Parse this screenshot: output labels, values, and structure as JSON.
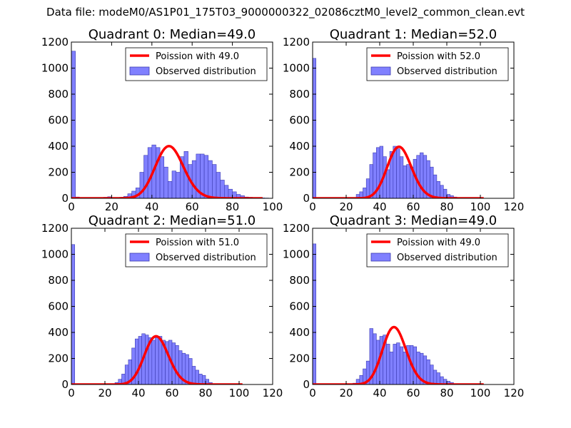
{
  "figure": {
    "suptitle": "Data file: modeM0/AS1P01_175T03_9000000322_02086cztM0_level2_common_clean.evt"
  },
  "colors": {
    "bar_fill": "#8080ff",
    "bar_edge": "#3b3bb0",
    "poisson_line": "#ff0000"
  },
  "chart_data": [
    {
      "type": "bar",
      "title": "Quadrant 0: Median=49.0",
      "xlim": [
        0,
        100
      ],
      "ylim": [
        0,
        1200
      ],
      "xticks": [
        0,
        20,
        40,
        60,
        80,
        100
      ],
      "yticks": [
        0,
        200,
        400,
        600,
        800,
        1000,
        1200
      ],
      "bin_width": 2,
      "legend": {
        "position": "top-right",
        "line_label": "Poission with 49.0",
        "bar_label": "Observed distribution"
      },
      "poisson_mean": 49.0,
      "poisson_peak": 400,
      "poisson_x_range": [
        0,
        95
      ],
      "bins": [
        [
          0,
          1130
        ],
        [
          2,
          10
        ],
        [
          4,
          5
        ],
        [
          6,
          5
        ],
        [
          8,
          5
        ],
        [
          10,
          5
        ],
        [
          12,
          5
        ],
        [
          14,
          5
        ],
        [
          16,
          8
        ],
        [
          18,
          12
        ],
        [
          20,
          5
        ],
        [
          22,
          5
        ],
        [
          24,
          8
        ],
        [
          26,
          15
        ],
        [
          28,
          35
        ],
        [
          30,
          55
        ],
        [
          32,
          80
        ],
        [
          34,
          200
        ],
        [
          36,
          330
        ],
        [
          38,
          390
        ],
        [
          40,
          410
        ],
        [
          42,
          390
        ],
        [
          44,
          320
        ],
        [
          46,
          240
        ],
        [
          48,
          130
        ],
        [
          50,
          210
        ],
        [
          52,
          200
        ],
        [
          54,
          320
        ],
        [
          56,
          360
        ],
        [
          58,
          260
        ],
        [
          60,
          290
        ],
        [
          62,
          340
        ],
        [
          64,
          340
        ],
        [
          66,
          330
        ],
        [
          68,
          290
        ],
        [
          70,
          260
        ],
        [
          72,
          200
        ],
        [
          74,
          140
        ],
        [
          76,
          100
        ],
        [
          78,
          70
        ],
        [
          80,
          50
        ],
        [
          82,
          30
        ],
        [
          84,
          20
        ],
        [
          86,
          10
        ],
        [
          88,
          8
        ],
        [
          90,
          5
        ],
        [
          92,
          4
        ],
        [
          94,
          3
        ],
        [
          96,
          2
        ],
        [
          98,
          1
        ]
      ]
    },
    {
      "type": "bar",
      "title": "Quadrant 1: Median=52.0",
      "xlim": [
        0,
        120
      ],
      "ylim": [
        0,
        1200
      ],
      "xticks": [
        0,
        20,
        40,
        60,
        80,
        100,
        120
      ],
      "yticks": [
        0,
        200,
        400,
        600,
        800,
        1000,
        1200
      ],
      "bin_width": 2,
      "legend": {
        "position": "top-right",
        "line_label": "Poission with 52.0",
        "bar_label": "Observed distribution"
      },
      "poisson_mean": 52.0,
      "poisson_peak": 395,
      "poisson_x_range": [
        0,
        102
      ],
      "bins": [
        [
          0,
          1075
        ],
        [
          2,
          3
        ],
        [
          4,
          2
        ],
        [
          6,
          2
        ],
        [
          8,
          2
        ],
        [
          10,
          2
        ],
        [
          12,
          2
        ],
        [
          14,
          2
        ],
        [
          16,
          2
        ],
        [
          18,
          2
        ],
        [
          20,
          2
        ],
        [
          22,
          2
        ],
        [
          24,
          5
        ],
        [
          26,
          30
        ],
        [
          28,
          50
        ],
        [
          30,
          80
        ],
        [
          32,
          150
        ],
        [
          34,
          260
        ],
        [
          36,
          350
        ],
        [
          38,
          390
        ],
        [
          40,
          400
        ],
        [
          42,
          320
        ],
        [
          44,
          220
        ],
        [
          46,
          360
        ],
        [
          48,
          400
        ],
        [
          50,
          380
        ],
        [
          52,
          320
        ],
        [
          54,
          250
        ],
        [
          56,
          260
        ],
        [
          58,
          240
        ],
        [
          60,
          300
        ],
        [
          62,
          330
        ],
        [
          64,
          350
        ],
        [
          66,
          330
        ],
        [
          68,
          290
        ],
        [
          70,
          240
        ],
        [
          72,
          180
        ],
        [
          74,
          130
        ],
        [
          76,
          100
        ],
        [
          78,
          70
        ],
        [
          80,
          30
        ],
        [
          82,
          20
        ],
        [
          84,
          10
        ],
        [
          86,
          5
        ],
        [
          88,
          5
        ],
        [
          90,
          4
        ],
        [
          92,
          3
        ],
        [
          94,
          2
        ],
        [
          96,
          2
        ],
        [
          98,
          1
        ]
      ]
    },
    {
      "type": "bar",
      "title": "Quadrant 2: Median=51.0",
      "xlim": [
        0,
        120
      ],
      "ylim": [
        0,
        1200
      ],
      "xticks": [
        0,
        20,
        40,
        60,
        80,
        100,
        120
      ],
      "yticks": [
        0,
        200,
        400,
        600,
        800,
        1000,
        1200
      ],
      "bin_width": 2,
      "legend": {
        "position": "top-right",
        "line_label": "Poission with 51.0",
        "bar_label": "Observed distribution"
      },
      "poisson_mean": 51.0,
      "poisson_peak": 370,
      "poisson_x_range": [
        0,
        102
      ],
      "bins": [
        [
          0,
          1075
        ],
        [
          2,
          3
        ],
        [
          4,
          2
        ],
        [
          6,
          2
        ],
        [
          8,
          2
        ],
        [
          10,
          2
        ],
        [
          12,
          2
        ],
        [
          14,
          2
        ],
        [
          16,
          2
        ],
        [
          18,
          2
        ],
        [
          20,
          3
        ],
        [
          22,
          3
        ],
        [
          24,
          5
        ],
        [
          26,
          15
        ],
        [
          28,
          40
        ],
        [
          30,
          80
        ],
        [
          32,
          150
        ],
        [
          34,
          190
        ],
        [
          36,
          280
        ],
        [
          38,
          350
        ],
        [
          40,
          370
        ],
        [
          42,
          390
        ],
        [
          44,
          380
        ],
        [
          46,
          360
        ],
        [
          48,
          340
        ],
        [
          50,
          360
        ],
        [
          52,
          370
        ],
        [
          54,
          340
        ],
        [
          56,
          330
        ],
        [
          58,
          340
        ],
        [
          60,
          320
        ],
        [
          62,
          300
        ],
        [
          64,
          260
        ],
        [
          66,
          240
        ],
        [
          68,
          230
        ],
        [
          70,
          200
        ],
        [
          72,
          140
        ],
        [
          74,
          110
        ],
        [
          76,
          80
        ],
        [
          78,
          70
        ],
        [
          80,
          40
        ],
        [
          82,
          15
        ],
        [
          84,
          5
        ],
        [
          86,
          5
        ],
        [
          88,
          4
        ],
        [
          90,
          3
        ],
        [
          92,
          3
        ],
        [
          94,
          2
        ],
        [
          96,
          2
        ],
        [
          98,
          1
        ]
      ]
    },
    {
      "type": "bar",
      "title": "Quadrant 3: Median=49.0",
      "xlim": [
        0,
        120
      ],
      "ylim": [
        0,
        1200
      ],
      "xticks": [
        0,
        20,
        40,
        60,
        80,
        100,
        120
      ],
      "yticks": [
        0,
        200,
        400,
        600,
        800,
        1000,
        1200
      ],
      "bin_width": 2,
      "legend": {
        "position": "top-right",
        "line_label": "Poission with 49.0",
        "bar_label": "Observed distribution"
      },
      "poisson_mean": 49.0,
      "poisson_peak": 440,
      "poisson_x_range": [
        0,
        102
      ],
      "bins": [
        [
          0,
          1080
        ],
        [
          2,
          3
        ],
        [
          4,
          2
        ],
        [
          6,
          2
        ],
        [
          8,
          2
        ],
        [
          10,
          2
        ],
        [
          12,
          2
        ],
        [
          14,
          2
        ],
        [
          16,
          2
        ],
        [
          18,
          2
        ],
        [
          20,
          2
        ],
        [
          22,
          2
        ],
        [
          24,
          10
        ],
        [
          26,
          40
        ],
        [
          28,
          70
        ],
        [
          30,
          120
        ],
        [
          32,
          180
        ],
        [
          34,
          430
        ],
        [
          36,
          390
        ],
        [
          38,
          340
        ],
        [
          40,
          370
        ],
        [
          42,
          380
        ],
        [
          44,
          310
        ],
        [
          46,
          250
        ],
        [
          48,
          310
        ],
        [
          50,
          320
        ],
        [
          52,
          290
        ],
        [
          54,
          250
        ],
        [
          56,
          300
        ],
        [
          58,
          300
        ],
        [
          60,
          290
        ],
        [
          62,
          250
        ],
        [
          64,
          240
        ],
        [
          66,
          220
        ],
        [
          68,
          190
        ],
        [
          70,
          150
        ],
        [
          72,
          110
        ],
        [
          74,
          90
        ],
        [
          76,
          60
        ],
        [
          78,
          40
        ],
        [
          80,
          25
        ],
        [
          82,
          15
        ],
        [
          84,
          5
        ],
        [
          86,
          5
        ],
        [
          88,
          4
        ],
        [
          90,
          3
        ],
        [
          92,
          3
        ],
        [
          94,
          2
        ],
        [
          96,
          2
        ],
        [
          98,
          1
        ]
      ]
    }
  ]
}
